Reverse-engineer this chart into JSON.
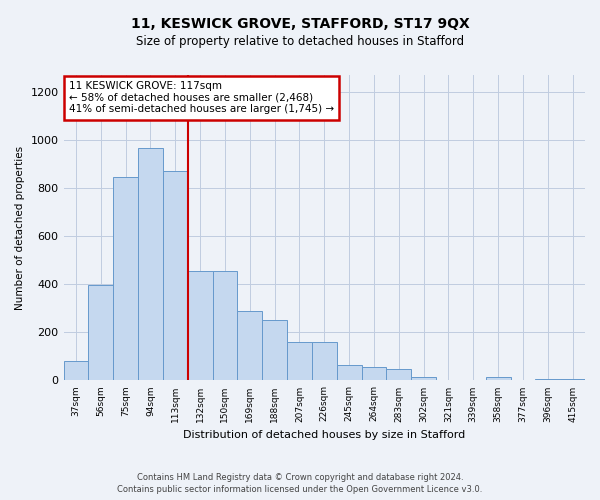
{
  "title1": "11, KESWICK GROVE, STAFFORD, ST17 9QX",
  "title2": "Size of property relative to detached houses in Stafford",
  "xlabel": "Distribution of detached houses by size in Stafford",
  "ylabel": "Number of detached properties",
  "categories": [
    "37sqm",
    "56sqm",
    "75sqm",
    "94sqm",
    "113sqm",
    "132sqm",
    "150sqm",
    "169sqm",
    "188sqm",
    "207sqm",
    "226sqm",
    "245sqm",
    "264sqm",
    "283sqm",
    "302sqm",
    "321sqm",
    "339sqm",
    "358sqm",
    "377sqm",
    "396sqm",
    "415sqm"
  ],
  "values": [
    80,
    395,
    845,
    965,
    870,
    455,
    455,
    290,
    250,
    160,
    160,
    65,
    55,
    47,
    15,
    0,
    0,
    15,
    0,
    7,
    7
  ],
  "bar_color": "#c5d8ef",
  "bar_edge_color": "#6699cc",
  "vline_x": 4.5,
  "vline_color": "#cc0000",
  "annotation_text": "11 KESWICK GROVE: 117sqm\n← 58% of detached houses are smaller (2,468)\n41% of semi-detached houses are larger (1,745) →",
  "annotation_box_color": "white",
  "annotation_box_edge": "#cc0000",
  "ylim": [
    0,
    1270
  ],
  "yticks": [
    0,
    200,
    400,
    600,
    800,
    1000,
    1200
  ],
  "footer1": "Contains HM Land Registry data © Crown copyright and database right 2024.",
  "footer2": "Contains public sector information licensed under the Open Government Licence v3.0.",
  "bg_color": "#eef2f8",
  "plot_bg_color": "#eef2f8",
  "grid_color": "#c0cce0"
}
